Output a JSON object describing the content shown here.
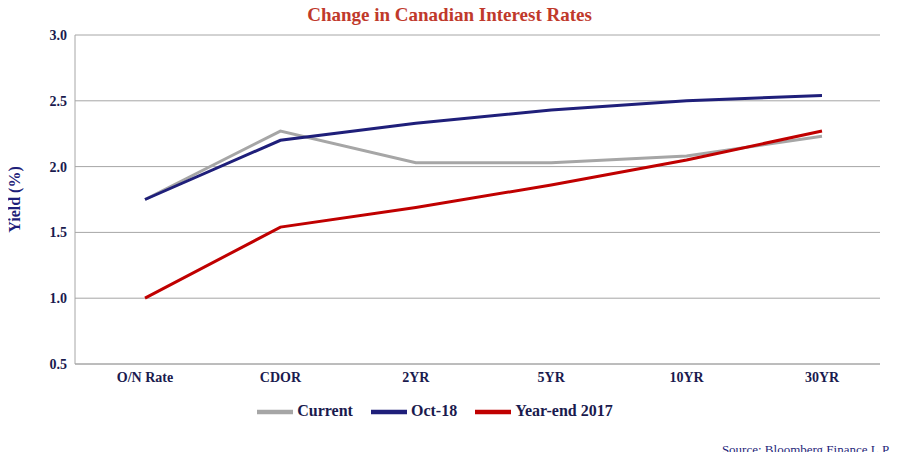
{
  "chart_data": {
    "type": "line",
    "title": "Change in Canadian Interest Rates",
    "y_label": "Yield (%)",
    "source": "Source: Bloomberg Finance L.P.",
    "categories": [
      "O/N Rate",
      "CDOR",
      "2YR",
      "5YR",
      "10YR",
      "30YR"
    ],
    "series": [
      {
        "name": "Current",
        "color": "#a6a6a6",
        "values": [
          1.75,
          2.27,
          2.03,
          2.03,
          2.08,
          2.23
        ]
      },
      {
        "name": "Oct-18",
        "color": "#1f1f7a",
        "values": [
          1.75,
          2.2,
          2.33,
          2.43,
          2.5,
          2.54
        ]
      },
      {
        "name": "Year-end 2017",
        "color": "#c00000",
        "values": [
          1.0,
          1.54,
          1.69,
          1.86,
          2.05,
          2.27
        ]
      }
    ],
    "ylim": [
      0.5,
      3.0
    ],
    "yticks": [
      0.5,
      {
        "value": 1,
        "label": "1.0"
      },
      1.5,
      {
        "value": 2,
        "label": "2.0"
      },
      2.5,
      {
        "value": 3,
        "label": "3.0"
      }
    ],
    "grid": true,
    "legend": "bottom"
  }
}
